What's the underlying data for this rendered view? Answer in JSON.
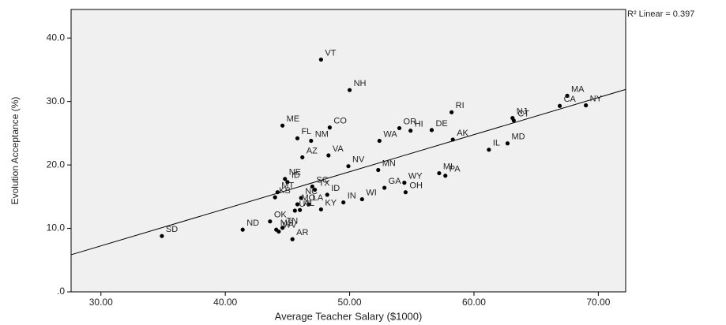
{
  "chart_data": {
    "type": "scatter",
    "x_label": "Average Teacher Salary ($1000)",
    "y_label": "Evolution Acceptance (%)",
    "annotation": "R² Linear = 0.397",
    "labels": [
      "VT",
      "NH",
      "MA",
      "NY",
      "CA",
      "NJ",
      "CT",
      "RI",
      "ME",
      "CO",
      "OR",
      "HI",
      "DE",
      "NM",
      "AK",
      "MD",
      "FL",
      "WA",
      "AZ",
      "VA",
      "IL",
      "NV",
      "MN",
      "MI",
      "PA",
      "NE",
      "ID",
      "SC",
      "TX",
      "MT",
      "KS",
      "ID",
      "WY",
      "OH",
      "GA",
      "NC",
      "MO",
      "LA",
      "WI",
      "IN",
      "UT",
      "AL",
      "KY",
      "OK",
      "ND",
      "TN",
      "WV",
      "MS",
      "AR",
      "SD"
    ],
    "x": [
      47.7,
      50.0,
      67.5,
      69.0,
      66.9,
      63.1,
      63.2,
      58.2,
      44.6,
      48.4,
      54.0,
      54.9,
      56.6,
      46.9,
      58.3,
      62.7,
      45.8,
      52.4,
      46.2,
      48.3,
      61.2,
      49.9,
      52.3,
      57.2,
      57.7,
      44.8,
      45.0,
      47.0,
      47.2,
      44.2,
      44.0,
      48.2,
      54.4,
      54.5,
      52.8,
      46.1,
      45.8,
      46.7,
      51.0,
      49.5,
      45.6,
      46.0,
      47.7,
      43.6,
      41.4,
      44.6,
      44.3,
      44.1,
      45.4,
      34.9
    ],
    "y": [
      36.6,
      31.8,
      30.9,
      29.4,
      29.3,
      27.4,
      27.0,
      28.3,
      26.2,
      25.9,
      25.8,
      25.4,
      25.5,
      23.8,
      24.0,
      23.4,
      24.2,
      23.8,
      21.2,
      21.5,
      22.4,
      19.8,
      19.2,
      18.7,
      18.3,
      17.8,
      17.3,
      16.6,
      16.1,
      15.7,
      14.9,
      15.3,
      17.2,
      15.7,
      16.4,
      14.8,
      13.8,
      13.8,
      14.6,
      14.1,
      12.8,
      12.9,
      13.0,
      11.1,
      9.8,
      10.1,
      9.5,
      9.8,
      8.3,
      8.8
    ],
    "color": "#000000",
    "trend_line": {
      "x": [
        27.6,
        72.2
      ],
      "y": [
        5.85,
        31.9
      ]
    },
    "xlim": [
      27.6,
      72.2
    ],
    "ylim": [
      0,
      44.5
    ],
    "xticks": [
      {
        "value": 30,
        "label": "30.00"
      },
      {
        "value": 40,
        "label": "40.00"
      },
      {
        "value": 50,
        "label": "50.00"
      },
      {
        "value": 60,
        "label": "60.00"
      },
      {
        "value": 70,
        "label": "70.00"
      }
    ],
    "yticks": [
      {
        "value": 0,
        "label": ".0"
      },
      {
        "value": 10,
        "label": "10.0"
      },
      {
        "value": 20,
        "label": "20.0"
      },
      {
        "value": 30,
        "label": "30.0"
      },
      {
        "value": 40,
        "label": "40.0"
      }
    ],
    "background": "#f0f0f0"
  }
}
